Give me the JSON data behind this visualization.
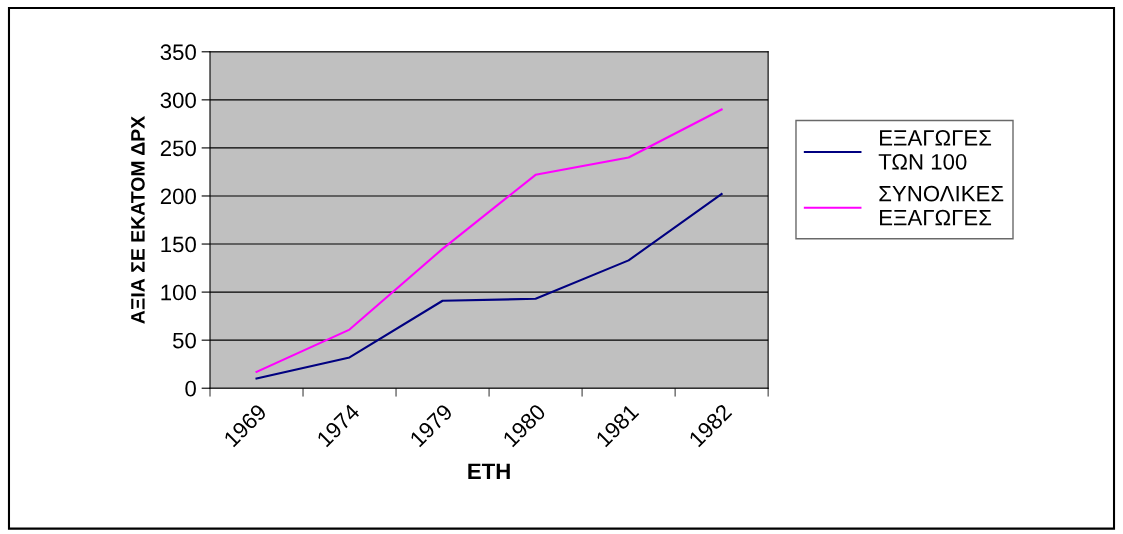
{
  "chart_data": {
    "type": "line",
    "xlabel": "ΕΤΗ",
    "ylabel": "ΑΞΙΑ ΣΕ ΕΚΑΤΟΜ ΔΡΧ",
    "categories": [
      "1969",
      "1974",
      "1979",
      "1980",
      "1981",
      "1982"
    ],
    "series": [
      {
        "name": "ΕΞΑΓΩΓΕΣ\nΤΩΝ 100",
        "color": "#000080",
        "values": [
          10,
          32,
          91,
          93,
          133,
          202
        ]
      },
      {
        "name": "ΣΥΝΟΛΙΚΕΣ\nΕΞΑΓΩΓΕΣ",
        "color": "#ff00ff",
        "values": [
          17,
          61,
          145,
          222,
          240,
          290
        ]
      }
    ],
    "ylim": [
      0,
      350
    ],
    "yticks": [
      0,
      50,
      100,
      150,
      200,
      250,
      300,
      350
    ],
    "grid": "y",
    "legend": "right",
    "marker": "none",
    "line_style": "solid"
  }
}
